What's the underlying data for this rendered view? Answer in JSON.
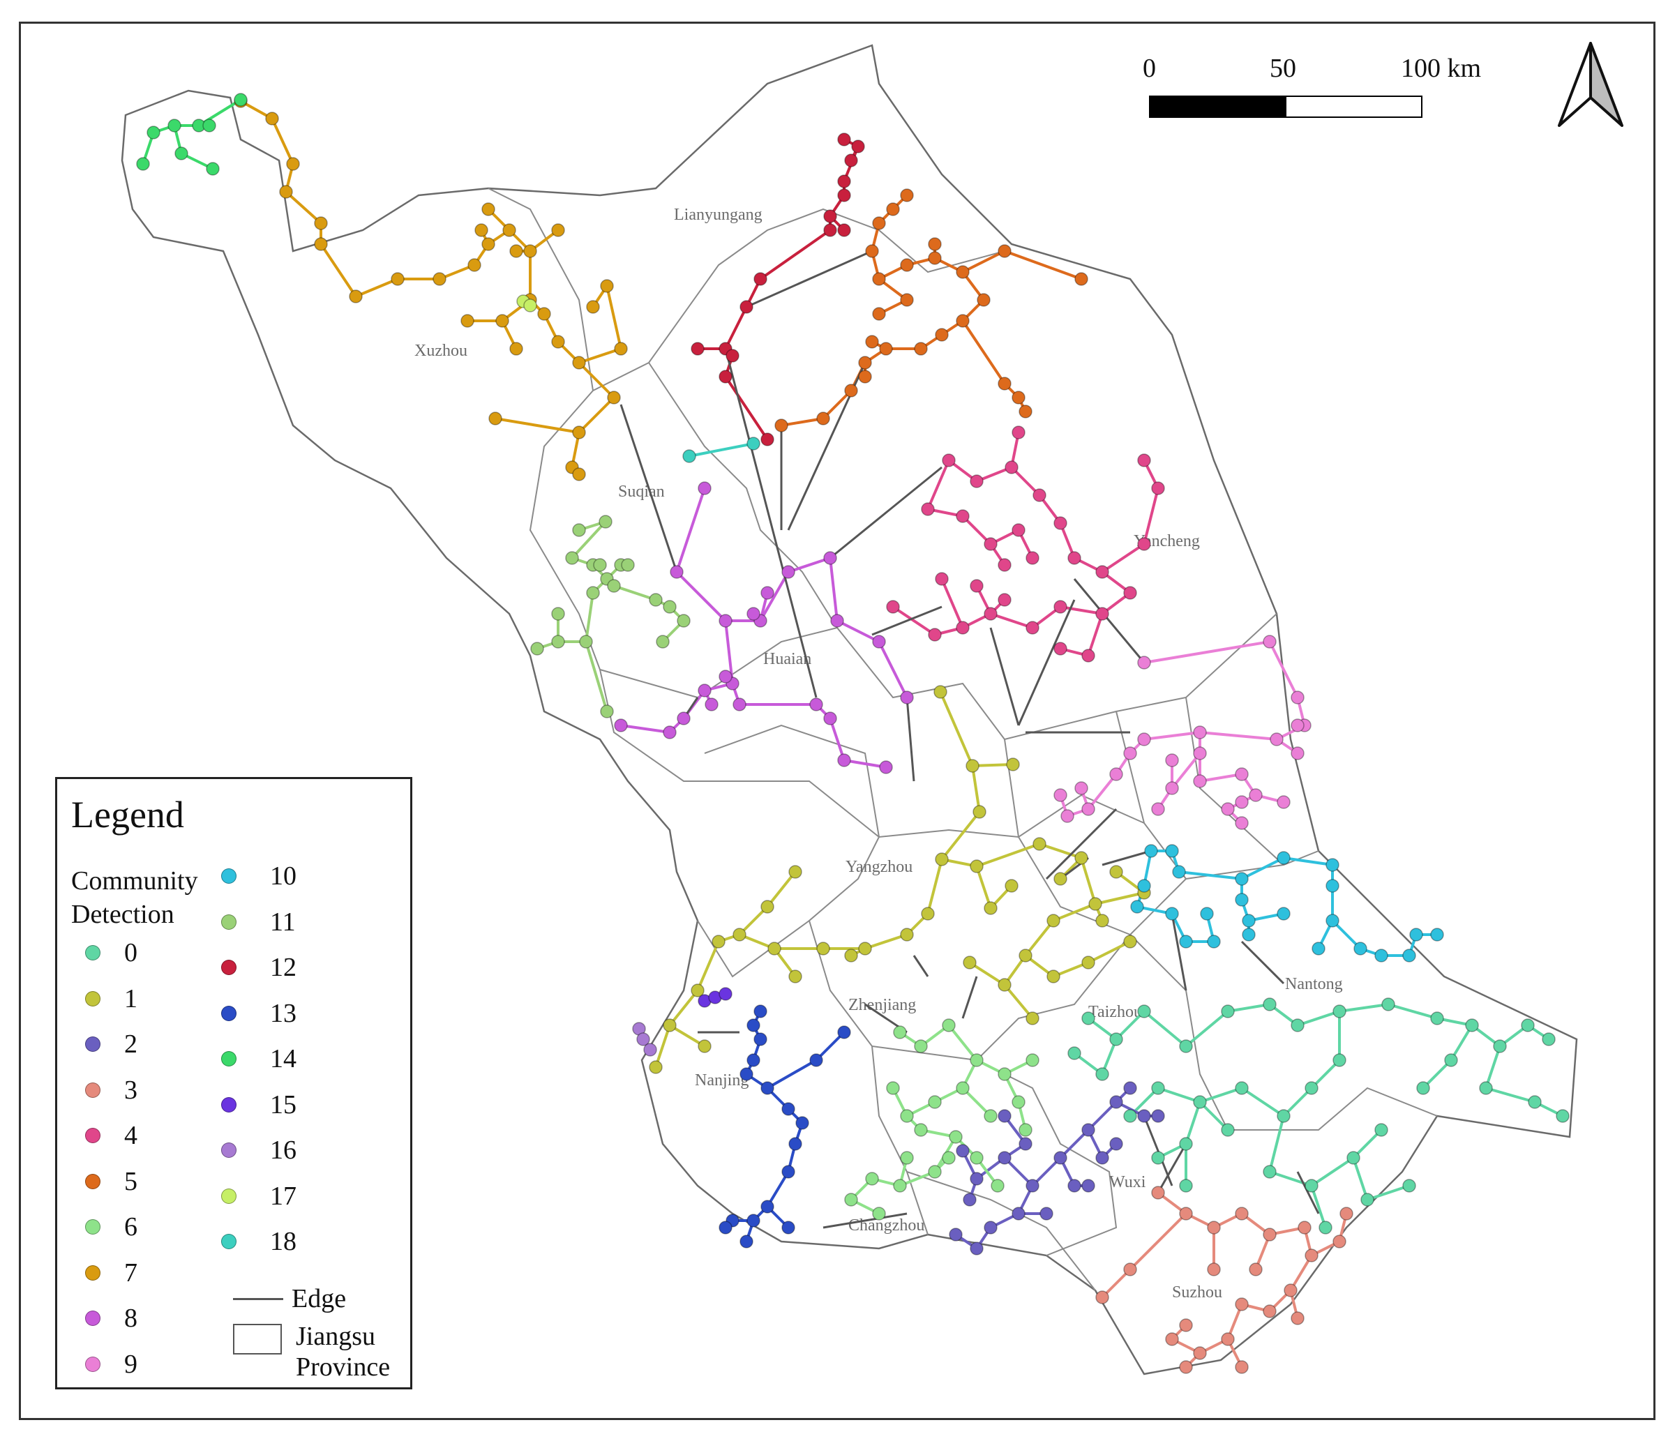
{
  "scale_bar": {
    "ticks": [
      "0",
      "50",
      "100 km"
    ]
  },
  "north_arrow": {
    "icon": "north-arrow-icon"
  },
  "cities": [
    {
      "name": "Lianyungang"
    },
    {
      "name": "Xuzhou"
    },
    {
      "name": "Suqian"
    },
    {
      "name": "Yancheng"
    },
    {
      "name": "Huaian"
    },
    {
      "name": "Yangzhou"
    },
    {
      "name": "Taizhou"
    },
    {
      "name": "Nantong"
    },
    {
      "name": "Zhenjiang"
    },
    {
      "name": "Nanjing"
    },
    {
      "name": "Wuxi"
    },
    {
      "name": "Changzhou"
    },
    {
      "name": "Suzhou"
    }
  ],
  "legend": {
    "title": "Legend",
    "section": "Community Detection",
    "communities": [
      {
        "label": "0",
        "color": "#5fd6a4"
      },
      {
        "label": "1",
        "color": "#c2c43a"
      },
      {
        "label": "2",
        "color": "#6a5fc0"
      },
      {
        "label": "3",
        "color": "#e58a7c"
      },
      {
        "label": "4",
        "color": "#e0468a"
      },
      {
        "label": "5",
        "color": "#dd6a1c"
      },
      {
        "label": "6",
        "color": "#8ee28a"
      },
      {
        "label": "7",
        "color": "#d99b10"
      },
      {
        "label": "8",
        "color": "#c75ad9"
      },
      {
        "label": "9",
        "color": "#ea7fd6"
      },
      {
        "label": "10",
        "color": "#2ec0dd"
      },
      {
        "label": "11",
        "color": "#9ad177"
      },
      {
        "label": "12",
        "color": "#c8203d"
      },
      {
        "label": "13",
        "color": "#2a4cc6"
      },
      {
        "label": "14",
        "color": "#3bd96a"
      },
      {
        "label": "15",
        "color": "#6a34e0"
      },
      {
        "label": "16",
        "color": "#a77ad2"
      },
      {
        "label": "17",
        "color": "#c6ef66"
      },
      {
        "label": "18",
        "color": "#3ccfbf"
      }
    ],
    "edge_label": "Edge",
    "edge_color": "#555555",
    "province_label": "Jiangsu Province"
  }
}
